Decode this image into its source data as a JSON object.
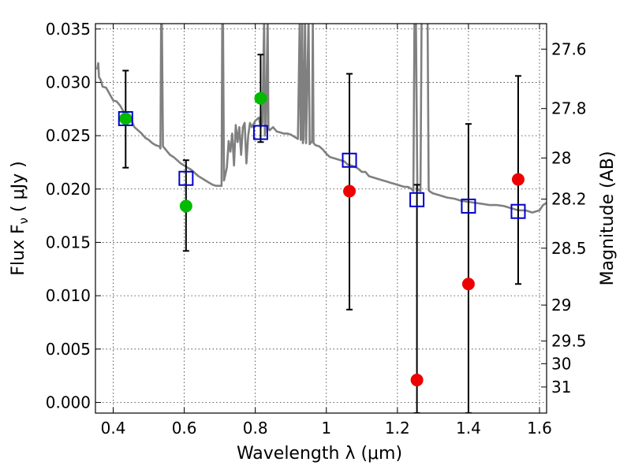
{
  "chart_data": {
    "type": "scatter",
    "xlabel": "Wavelength  λ (μm)",
    "ylabel": "Flux  F",
    "ylabel_sub": "ν",
    "ylabel_unit": "  ( μJy )",
    "ylabel_right": "Magnitude (AB)",
    "xlim": [
      0.35,
      1.62
    ],
    "ylim": [
      -0.001,
      0.0355
    ],
    "grid": true,
    "x_ticks": [
      0.4,
      0.6,
      0.8,
      1.0,
      1.2,
      1.4,
      1.6
    ],
    "x_tick_labels": [
      "0.4",
      "0.6",
      "0.8",
      "1",
      "1.2",
      "1.4",
      "1.6"
    ],
    "y_ticks": [
      0.0,
      0.005,
      0.01,
      0.015,
      0.02,
      0.025,
      0.03,
      0.035
    ],
    "y_tick_labels": [
      "0.000",
      "0.005",
      "0.010",
      "0.015",
      "0.020",
      "0.025",
      "0.030",
      "0.035"
    ],
    "right_ticks": [
      {
        "label": "27.6",
        "value": 27.6
      },
      {
        "label": "27.8",
        "value": 27.8
      },
      {
        "label": "28",
        "value": 28.0
      },
      {
        "label": "28.2",
        "value": 28.2
      },
      {
        "label": "28.5",
        "value": 28.5
      },
      {
        "label": "29",
        "value": 29.0
      },
      {
        "label": "29.5",
        "value": 29.5
      },
      {
        "label": "30",
        "value": 30.0
      },
      {
        "label": "31",
        "value": 31.0
      }
    ],
    "colors": {
      "template": "#808080",
      "model_box": "#0000cc",
      "detection": "#00bb00",
      "nondetection": "#ee0000",
      "errorbar": "#000000"
    },
    "series": [
      {
        "kind": "template_line",
        "points": [
          [
            0.355,
            0.0312
          ],
          [
            0.358,
            0.0318
          ],
          [
            0.36,
            0.0305
          ],
          [
            0.365,
            0.0302
          ],
          [
            0.37,
            0.0296
          ],
          [
            0.38,
            0.0295
          ],
          [
            0.39,
            0.0289
          ],
          [
            0.4,
            0.0283
          ],
          [
            0.41,
            0.0282
          ],
          [
            0.42,
            0.0278
          ],
          [
            0.43,
            0.0272
          ],
          [
            0.44,
            0.0266
          ],
          [
            0.45,
            0.0265
          ],
          [
            0.46,
            0.0258
          ],
          [
            0.47,
            0.0255
          ],
          [
            0.48,
            0.0252
          ],
          [
            0.49,
            0.0248
          ],
          [
            0.5,
            0.0246
          ],
          [
            0.51,
            0.0243
          ],
          [
            0.52,
            0.0241
          ],
          [
            0.53,
            0.024
          ],
          [
            0.533,
            0.0238
          ],
          [
            0.535,
            0.036
          ],
          [
            0.537,
            0.036
          ],
          [
            0.54,
            0.024
          ],
          [
            0.55,
            0.0236
          ],
          [
            0.56,
            0.0232
          ],
          [
            0.57,
            0.023
          ],
          [
            0.58,
            0.0227
          ],
          [
            0.59,
            0.0224
          ],
          [
            0.6,
            0.0222
          ],
          [
            0.61,
            0.022
          ],
          [
            0.62,
            0.0218
          ],
          [
            0.63,
            0.0215
          ],
          [
            0.64,
            0.0212
          ],
          [
            0.65,
            0.021
          ],
          [
            0.66,
            0.0208
          ],
          [
            0.67,
            0.0206
          ],
          [
            0.68,
            0.0204
          ],
          [
            0.69,
            0.0203
          ],
          [
            0.7,
            0.0203
          ],
          [
            0.705,
            0.0203
          ],
          [
            0.707,
            0.036
          ],
          [
            0.709,
            0.036
          ],
          [
            0.712,
            0.0208
          ],
          [
            0.72,
            0.022
          ],
          [
            0.725,
            0.0245
          ],
          [
            0.73,
            0.0235
          ],
          [
            0.735,
            0.0252
          ],
          [
            0.74,
            0.0222
          ],
          [
            0.745,
            0.026
          ],
          [
            0.75,
            0.0244
          ],
          [
            0.755,
            0.0258
          ],
          [
            0.76,
            0.0232
          ],
          [
            0.765,
            0.0258
          ],
          [
            0.77,
            0.0262
          ],
          [
            0.775,
            0.0224
          ],
          [
            0.78,
            0.025
          ],
          [
            0.785,
            0.0262
          ],
          [
            0.79,
            0.0258
          ],
          [
            0.8,
            0.0264
          ],
          [
            0.81,
            0.0267
          ],
          [
            0.815,
            0.0258
          ],
          [
            0.82,
            0.0262
          ],
          [
            0.825,
            0.036
          ],
          [
            0.827,
            0.025
          ],
          [
            0.83,
            0.0262
          ],
          [
            0.835,
            0.036
          ],
          [
            0.837,
            0.0257
          ],
          [
            0.84,
            0.0255
          ],
          [
            0.85,
            0.0258
          ],
          [
            0.86,
            0.0254
          ],
          [
            0.87,
            0.0253
          ],
          [
            0.88,
            0.0252
          ],
          [
            0.89,
            0.0252
          ],
          [
            0.9,
            0.0251
          ],
          [
            0.91,
            0.0249
          ],
          [
            0.92,
            0.0247
          ],
          [
            0.925,
            0.036
          ],
          [
            0.928,
            0.0246
          ],
          [
            0.93,
            0.0248
          ],
          [
            0.932,
            0.036
          ],
          [
            0.934,
            0.0243
          ],
          [
            0.936,
            0.0247
          ],
          [
            0.94,
            0.036
          ],
          [
            0.943,
            0.0243
          ],
          [
            0.95,
            0.036
          ],
          [
            0.953,
            0.0242
          ],
          [
            0.96,
            0.0245
          ],
          [
            0.962,
            0.036
          ],
          [
            0.964,
            0.0243
          ],
          [
            0.97,
            0.0241
          ],
          [
            0.98,
            0.024
          ],
          [
            0.99,
            0.0237
          ],
          [
            1.0,
            0.0233
          ],
          [
            1.01,
            0.023
          ],
          [
            1.02,
            0.0229
          ],
          [
            1.03,
            0.0228
          ],
          [
            1.04,
            0.0227
          ],
          [
            1.05,
            0.0226
          ],
          [
            1.06,
            0.0223
          ],
          [
            1.07,
            0.0222
          ],
          [
            1.08,
            0.0221
          ],
          [
            1.09,
            0.0219
          ],
          [
            1.1,
            0.0216
          ],
          [
            1.11,
            0.0216
          ],
          [
            1.12,
            0.0212
          ],
          [
            1.13,
            0.0211
          ],
          [
            1.14,
            0.021
          ],
          [
            1.15,
            0.0209
          ],
          [
            1.16,
            0.0208
          ],
          [
            1.17,
            0.0207
          ],
          [
            1.18,
            0.0206
          ],
          [
            1.19,
            0.0205
          ],
          [
            1.2,
            0.0204
          ],
          [
            1.21,
            0.0203
          ],
          [
            1.22,
            0.0202
          ],
          [
            1.23,
            0.0202
          ],
          [
            1.24,
            0.02
          ],
          [
            1.245,
            0.0198
          ],
          [
            1.248,
            0.036
          ],
          [
            1.252,
            0.036
          ],
          [
            1.256,
            0.02
          ],
          [
            1.26,
            0.0199
          ],
          [
            1.265,
            0.0198
          ],
          [
            1.268,
            0.036
          ],
          [
            1.272,
            0.036
          ],
          [
            1.276,
            0.036
          ],
          [
            1.28,
            0.036
          ],
          [
            1.285,
            0.036
          ],
          [
            1.288,
            0.0199
          ],
          [
            1.29,
            0.0198
          ],
          [
            1.3,
            0.0196
          ],
          [
            1.32,
            0.0194
          ],
          [
            1.34,
            0.0192
          ],
          [
            1.36,
            0.0191
          ],
          [
            1.38,
            0.0189
          ],
          [
            1.4,
            0.0188
          ],
          [
            1.42,
            0.0187
          ],
          [
            1.44,
            0.0186
          ],
          [
            1.46,
            0.0185
          ],
          [
            1.48,
            0.0185
          ],
          [
            1.5,
            0.0184
          ],
          [
            1.52,
            0.0182
          ],
          [
            1.54,
            0.018
          ],
          [
            1.56,
            0.018
          ],
          [
            1.58,
            0.0178
          ],
          [
            1.6,
            0.018
          ],
          [
            1.61,
            0.0185
          ],
          [
            1.62,
            0.0187
          ]
        ]
      },
      {
        "kind": "model_boxes",
        "points": [
          [
            0.435,
            0.0266
          ],
          [
            0.605,
            0.021
          ],
          [
            0.815,
            0.0253
          ],
          [
            1.065,
            0.0227
          ],
          [
            1.255,
            0.019
          ],
          [
            1.4,
            0.0184
          ],
          [
            1.54,
            0.0179
          ]
        ]
      },
      {
        "kind": "detections",
        "points": [
          [
            0.435,
            0.0266
          ],
          [
            0.605,
            0.0184
          ],
          [
            0.815,
            0.0285
          ]
        ]
      },
      {
        "kind": "nondetections",
        "points": [
          [
            1.065,
            0.0198
          ],
          [
            1.255,
            0.0021
          ],
          [
            1.4,
            0.0111
          ],
          [
            1.54,
            0.0209
          ]
        ]
      },
      {
        "kind": "errorbars",
        "points": [
          {
            "x": 0.435,
            "lo": 0.022,
            "hi": 0.0311
          },
          {
            "x": 0.605,
            "lo": 0.0142,
            "hi": 0.0227
          },
          {
            "x": 0.815,
            "lo": 0.0244,
            "hi": 0.0326
          },
          {
            "x": 1.065,
            "lo": 0.0087,
            "hi": 0.0308
          },
          {
            "x": 1.255,
            "lo": -0.001,
            "hi": 0.0204
          },
          {
            "x": 1.4,
            "lo": -0.001,
            "hi": 0.0261
          },
          {
            "x": 1.54,
            "lo": 0.0111,
            "hi": 0.0306
          }
        ]
      }
    ]
  }
}
